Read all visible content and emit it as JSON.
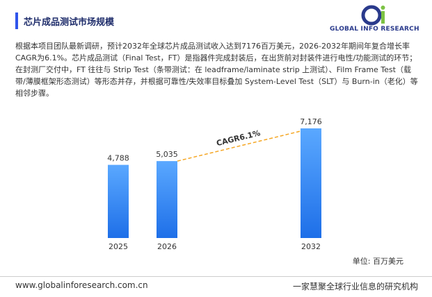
{
  "header": {
    "title": "芯片成品测试市场规模",
    "brand": "GLOBAL INFO RESEARCH"
  },
  "paragraph": "根据本项目团队最新调研，预计2032年全球芯片成品测试收入达到7176百万美元，2026-2032年期间年复合增长率CAGR为6.1%。芯片成品测试（Final Test，FT）是指器件完成封装后，在出货前对封装件进行电性/功能测试的环节；在封测厂交付中，FT 往往与 Strip Test（条带测试：在 leadframe/laminate strip 上测试）、Film Frame Test（载带/薄膜框架形态测试）等形态并存，并根据可靠性/失效率目标叠加 System-Level Test（SLT）与 Burn-in（老化）等相邻步骤。",
  "chart_data": {
    "type": "bar",
    "categories": [
      "2025",
      "2026",
      "2032"
    ],
    "values": [
      4788,
      5035,
      7176
    ],
    "value_labels": [
      "4,788",
      "5,035",
      "7,176"
    ],
    "color": "#3b8cf5",
    "annotation": "CAGR6.1%",
    "unit_label": "单位: 百万美元"
  },
  "footer": {
    "url": "www.globalinforesearch.com.cn",
    "slogan": "一家慧聚全球行业信息的研究机构"
  }
}
